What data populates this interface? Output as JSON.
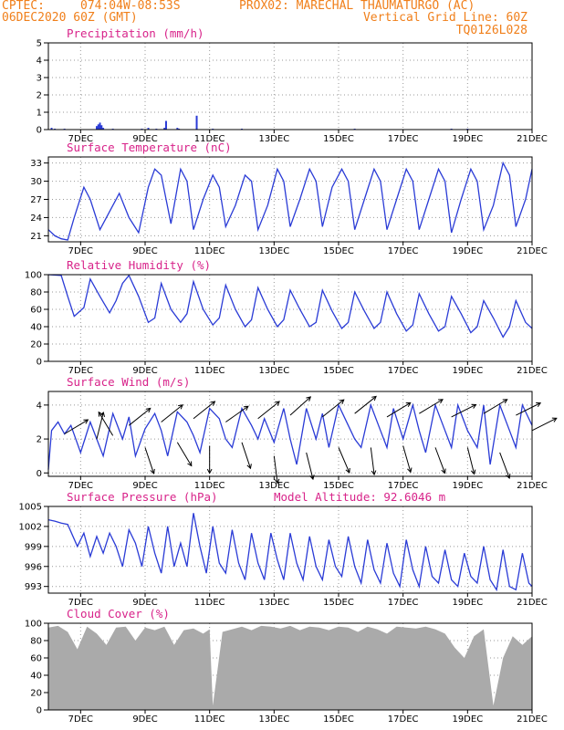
{
  "header": {
    "line1_left": "CPTEC:",
    "line1_coords": "074:04W-08:53S",
    "line1_station": "PROX02: MARECHAL THAUMATURGO (AC)",
    "line2_left": "06DEC2020 60Z (GMT)",
    "line2_right": "Vertical Grid Line: 60Z",
    "line3_right": "TQ0126L028"
  },
  "colors": {
    "header": "#f07f1a",
    "title": "#d8238a",
    "series": "#2a3bd6",
    "cloud": "#aaaaaa",
    "grid": "#999999",
    "wind_arrow": "#000000"
  },
  "x_ticks": [
    "7DEC",
    "9DEC",
    "11DEC",
    "13DEC",
    "15DEC",
    "17DEC",
    "19DEC",
    "21DEC"
  ],
  "chart_data": [
    {
      "id": "precip",
      "type": "bar",
      "title": "Precipitation (mm/h)",
      "x_range_days": [
        6.0,
        21.0
      ],
      "ylim": [
        0,
        5
      ],
      "yticks": [
        "0",
        "1",
        "2",
        "3",
        "4",
        "5"
      ],
      "series": [
        {
          "x": [
            6.1,
            6.2,
            6.5,
            7.5,
            7.55,
            7.6,
            7.65,
            7.7,
            8.0,
            8.9,
            9.1,
            9.35,
            9.6,
            9.65,
            10.0,
            10.05,
            10.6,
            11.1,
            12.0,
            15.5,
            18.5,
            19.0
          ],
          "values": [
            0.1,
            0.05,
            0.05,
            0.2,
            0.3,
            0.4,
            0.25,
            0.1,
            0.05,
            0.05,
            0.1,
            0.05,
            0.1,
            0.5,
            0.1,
            0.05,
            0.8,
            0.05,
            0.05,
            0.05,
            0.05,
            0.05
          ]
        }
      ]
    },
    {
      "id": "temp",
      "type": "line",
      "title": "Surface Temperature (nC)",
      "x_range_days": [
        6.0,
        21.0
      ],
      "ylim": [
        20,
        34
      ],
      "yticks": [
        "21",
        "24",
        "27",
        "30",
        "33"
      ],
      "series": [
        {
          "x": [
            6.0,
            6.2,
            6.4,
            6.6,
            6.8,
            7.1,
            7.3,
            7.6,
            7.9,
            8.2,
            8.5,
            8.8,
            9.1,
            9.3,
            9.5,
            9.8,
            10.1,
            10.3,
            10.5,
            10.8,
            11.1,
            11.3,
            11.5,
            11.8,
            12.1,
            12.3,
            12.5,
            12.8,
            13.1,
            13.3,
            13.5,
            13.8,
            14.1,
            14.3,
            14.5,
            14.8,
            15.1,
            15.3,
            15.5,
            15.8,
            16.1,
            16.3,
            16.5,
            16.8,
            17.1,
            17.3,
            17.5,
            17.8,
            18.1,
            18.3,
            18.5,
            18.8,
            19.1,
            19.3,
            19.5,
            19.8,
            20.1,
            20.3,
            20.5,
            20.8,
            21.0
          ],
          "values": [
            22,
            21,
            20.5,
            20.3,
            24,
            29,
            27,
            22,
            25,
            28,
            24,
            21.5,
            29,
            32,
            31,
            23,
            32,
            30,
            22,
            27,
            31,
            29,
            22.5,
            26,
            31,
            30,
            22,
            26,
            32,
            30,
            22.5,
            27,
            32,
            30,
            22.5,
            29,
            32,
            30,
            22,
            27,
            32,
            30,
            22,
            27,
            32,
            30,
            22,
            27,
            32,
            30,
            21.5,
            27,
            32,
            30,
            22,
            26,
            33,
            31,
            22.5,
            27,
            32
          ]
        }
      ]
    },
    {
      "id": "rh",
      "type": "line",
      "title": "Relative Humidity (%)",
      "x_range_days": [
        6.0,
        21.0
      ],
      "ylim": [
        0,
        100
      ],
      "yticks": [
        "0",
        "20",
        "40",
        "60",
        "80",
        "100"
      ],
      "series": [
        {
          "x": [
            6.0,
            6.4,
            6.6,
            6.8,
            7.1,
            7.3,
            7.6,
            7.9,
            8.1,
            8.3,
            8.5,
            8.8,
            9.1,
            9.3,
            9.5,
            9.8,
            10.1,
            10.3,
            10.5,
            10.8,
            11.1,
            11.3,
            11.5,
            11.8,
            12.1,
            12.3,
            12.5,
            12.8,
            13.1,
            13.3,
            13.5,
            13.8,
            14.1,
            14.3,
            14.5,
            14.8,
            15.1,
            15.3,
            15.5,
            15.8,
            16.1,
            16.3,
            16.5,
            16.8,
            17.1,
            17.3,
            17.5,
            17.8,
            18.1,
            18.3,
            18.5,
            18.8,
            19.1,
            19.3,
            19.5,
            19.8,
            20.1,
            20.3,
            20.5,
            20.8,
            21.0
          ],
          "values": [
            100,
            99,
            75,
            52,
            62,
            95,
            75,
            56,
            70,
            90,
            99,
            75,
            45,
            50,
            90,
            60,
            45,
            55,
            92,
            60,
            42,
            50,
            88,
            60,
            40,
            48,
            85,
            60,
            40,
            48,
            82,
            60,
            40,
            45,
            82,
            58,
            38,
            45,
            80,
            58,
            38,
            45,
            80,
            55,
            35,
            42,
            78,
            55,
            35,
            40,
            75,
            55,
            33,
            40,
            70,
            50,
            28,
            40,
            70,
            45,
            38
          ]
        }
      ]
    },
    {
      "id": "wind",
      "type": "line",
      "title": "Surface Wind (m/s)",
      "x_range_days": [
        6.0,
        21.0
      ],
      "ylim": [
        -0.2,
        4.8
      ],
      "yticks": [
        "0",
        "2",
        "4"
      ],
      "series": [
        {
          "x": [
            6.0,
            6.1,
            6.3,
            6.5,
            6.7,
            7.0,
            7.3,
            7.5,
            7.7,
            8.0,
            8.3,
            8.5,
            8.7,
            9.0,
            9.3,
            9.5,
            9.7,
            10.0,
            10.3,
            10.5,
            10.7,
            11.0,
            11.3,
            11.5,
            11.7,
            12.0,
            12.3,
            12.5,
            12.7,
            13.0,
            13.3,
            13.5,
            13.7,
            14.0,
            14.3,
            14.5,
            14.7,
            15.0,
            15.3,
            15.5,
            15.7,
            16.0,
            16.3,
            16.5,
            16.7,
            17.0,
            17.3,
            17.5,
            17.7,
            18.0,
            18.3,
            18.5,
            18.7,
            19.0,
            19.3,
            19.5,
            19.7,
            20.0,
            20.3,
            20.5,
            20.7,
            21.0
          ],
          "values": [
            0.2,
            2.5,
            3.0,
            2.3,
            2.8,
            1.2,
            3.0,
            2.0,
            1.0,
            3.5,
            2.0,
            3.3,
            1.0,
            2.6,
            3.5,
            2.5,
            1.0,
            3.6,
            3.0,
            2.2,
            1.2,
            3.8,
            3.2,
            2.0,
            1.5,
            3.8,
            2.8,
            2.0,
            3.2,
            1.8,
            3.8,
            2.0,
            0.5,
            3.8,
            2.0,
            3.5,
            1.5,
            4.0,
            2.8,
            2.0,
            1.5,
            4.0,
            2.5,
            1.5,
            3.8,
            2.0,
            4.0,
            2.5,
            1.2,
            4.0,
            2.5,
            1.5,
            4.0,
            2.5,
            1.5,
            4.0,
            0.5,
            4.0,
            2.5,
            1.5,
            4.0,
            2.8
          ]
        }
      ],
      "wind_vectors": {
        "x": [
          6.5,
          7.5,
          8.0,
          8.5,
          9.0,
          9.5,
          10.0,
          10.5,
          11.0,
          11.5,
          12.0,
          12.5,
          13.0,
          13.5,
          14.0,
          14.5,
          15.0,
          15.5,
          16.0,
          16.5,
          17.0,
          17.5,
          18.0,
          18.5,
          19.0,
          19.5,
          20.0,
          20.5,
          21.0
        ],
        "u": [
          1.0,
          0.2,
          -0.3,
          1.0,
          0.2,
          1.0,
          0.3,
          1.0,
          0.0,
          1.0,
          0.2,
          1.0,
          0.1,
          1.0,
          0.2,
          1.0,
          0.3,
          1.0,
          0.1,
          1.0,
          0.2,
          1.0,
          0.3,
          1.0,
          0.2,
          1.0,
          0.3,
          1.0,
          1.0
        ],
        "v": [
          0.6,
          0.8,
          0.5,
          0.8,
          -0.6,
          0.8,
          -0.5,
          0.8,
          -0.7,
          0.7,
          -0.6,
          0.8,
          -0.8,
          0.9,
          -0.8,
          0.8,
          -0.7,
          0.8,
          -0.8,
          0.6,
          -0.7,
          0.6,
          -0.8,
          0.5,
          -0.8,
          0.6,
          -0.8,
          0.5,
          0.5
        ],
        "speed": [
          2.3,
          2.0,
          2.2,
          2.8,
          1.5,
          3.0,
          1.8,
          3.2,
          1.6,
          3.0,
          1.8,
          3.2,
          1.0,
          3.4,
          1.2,
          3.3,
          1.5,
          3.5,
          1.5,
          3.3,
          1.6,
          3.5,
          1.5,
          3.3,
          1.5,
          3.5,
          1.2,
          3.4,
          2.5
        ]
      }
    },
    {
      "id": "pressure",
      "type": "line",
      "title": "Surface Pressure (hPa)",
      "subtitle": "Model Altitude: 92.6046 m",
      "x_range_days": [
        6.0,
        21.0
      ],
      "ylim": [
        992,
        1005
      ],
      "yticks": [
        "993",
        "996",
        "999",
        "1002",
        "1005"
      ],
      "series": [
        {
          "x": [
            6.0,
            6.2,
            6.4,
            6.6,
            6.9,
            7.1,
            7.3,
            7.5,
            7.7,
            7.9,
            8.1,
            8.3,
            8.5,
            8.7,
            8.9,
            9.1,
            9.3,
            9.5,
            9.7,
            9.9,
            10.1,
            10.3,
            10.5,
            10.7,
            10.9,
            11.1,
            11.3,
            11.5,
            11.7,
            11.9,
            12.1,
            12.3,
            12.5,
            12.7,
            12.9,
            13.1,
            13.3,
            13.5,
            13.7,
            13.9,
            14.1,
            14.3,
            14.5,
            14.7,
            14.9,
            15.1,
            15.3,
            15.5,
            15.7,
            15.9,
            16.1,
            16.3,
            16.5,
            16.7,
            16.9,
            17.1,
            17.3,
            17.5,
            17.7,
            17.9,
            18.1,
            18.3,
            18.5,
            18.7,
            18.9,
            19.1,
            19.3,
            19.5,
            19.7,
            19.9,
            20.1,
            20.3,
            20.5,
            20.7,
            20.9,
            21.0
          ],
          "values": [
            1003.0,
            1002.8,
            1002.5,
            1002.3,
            999.0,
            1001.0,
            997.5,
            1000.5,
            998.0,
            1001.0,
            999.0,
            996.0,
            1001.5,
            999.5,
            996.0,
            1002.0,
            998.0,
            995.0,
            1002.0,
            996.0,
            999.5,
            996.0,
            1004.0,
            999.0,
            995.0,
            1002.0,
            996.5,
            995.0,
            1001.5,
            996.5,
            994.0,
            1001.0,
            996.5,
            994.0,
            1001.0,
            997.0,
            994.0,
            1001.0,
            996.5,
            994.0,
            1000.5,
            996.0,
            994.0,
            1000.0,
            996.0,
            994.5,
            1000.5,
            996.0,
            993.5,
            1000.0,
            995.5,
            993.5,
            999.5,
            995.0,
            993.0,
            1000.0,
            995.5,
            993.0,
            999.0,
            994.5,
            993.5,
            998.5,
            994.0,
            993.0,
            998.0,
            994.5,
            993.5,
            999.0,
            994.0,
            992.5,
            998.5,
            993.0,
            992.5,
            998.0,
            993.5,
            993.0
          ]
        }
      ]
    },
    {
      "id": "cloud",
      "type": "area",
      "title": "Cloud Cover (%)",
      "x_range_days": [
        6.0,
        21.0
      ],
      "ylim": [
        0,
        100
      ],
      "yticks": [
        "0",
        "20",
        "40",
        "60",
        "80",
        "100"
      ],
      "series": [
        {
          "x": [
            6.0,
            6.3,
            6.6,
            6.9,
            7.2,
            7.5,
            7.8,
            8.1,
            8.4,
            8.7,
            9.0,
            9.3,
            9.6,
            9.9,
            10.2,
            10.5,
            10.8,
            11.0,
            11.1,
            11.4,
            11.7,
            12.0,
            12.3,
            12.6,
            12.9,
            13.2,
            13.5,
            13.8,
            14.1,
            14.4,
            14.7,
            15.0,
            15.3,
            15.6,
            15.9,
            16.2,
            16.5,
            16.8,
            17.1,
            17.4,
            17.7,
            18.0,
            18.3,
            18.6,
            18.9,
            19.2,
            19.5,
            19.8,
            20.1,
            20.4,
            20.7,
            21.0
          ],
          "values": [
            95,
            97,
            90,
            70,
            96,
            88,
            75,
            95,
            96,
            80,
            95,
            92,
            96,
            75,
            92,
            94,
            88,
            93,
            5,
            90,
            93,
            96,
            92,
            97,
            96,
            94,
            97,
            92,
            96,
            95,
            92,
            96,
            95,
            90,
            96,
            93,
            88,
            96,
            95,
            94,
            96,
            93,
            88,
            72,
            60,
            85,
            93,
            5,
            60,
            85,
            75,
            85
          ]
        }
      ]
    }
  ]
}
